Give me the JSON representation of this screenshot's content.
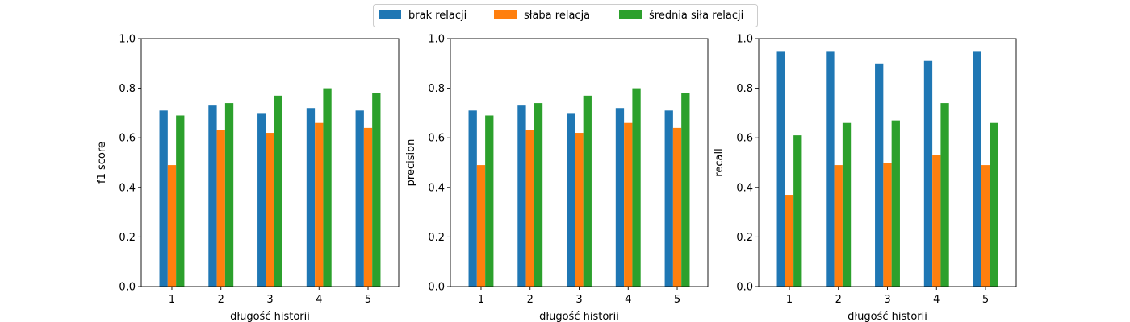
{
  "legend": {
    "placement": "top-center",
    "entries": [
      {
        "label": "brak relacji",
        "color": "#1f77b4"
      },
      {
        "label": "słaba relacja",
        "color": "#ff7f0e"
      },
      {
        "label": "średnia siła relacji",
        "color": "#2ca02c"
      }
    ]
  },
  "chart_data": [
    {
      "type": "bar",
      "title": "",
      "xlabel": "długość historii",
      "ylabel": "f1 score",
      "ylim": [
        0,
        1.0
      ],
      "yticks": [
        "0.0",
        "0.2",
        "0.4",
        "0.6",
        "0.8",
        "1.0"
      ],
      "categories": [
        "1",
        "2",
        "3",
        "4",
        "5"
      ],
      "grid": false,
      "series": [
        {
          "name": "brak relacji",
          "color": "#1f77b4",
          "values": [
            0.71,
            0.73,
            0.7,
            0.72,
            0.71
          ]
        },
        {
          "name": "słaba relacja",
          "color": "#ff7f0e",
          "values": [
            0.49,
            0.63,
            0.62,
            0.66,
            0.64
          ]
        },
        {
          "name": "średnia siła relacji",
          "color": "#2ca02c",
          "values": [
            0.69,
            0.74,
            0.77,
            0.8,
            0.78
          ]
        }
      ]
    },
    {
      "type": "bar",
      "title": "",
      "xlabel": "długość historii",
      "ylabel": "precision",
      "ylim": [
        0,
        1.0
      ],
      "yticks": [
        "0.0",
        "0.2",
        "0.4",
        "0.6",
        "0.8",
        "1.0"
      ],
      "categories": [
        "1",
        "2",
        "3",
        "4",
        "5"
      ],
      "grid": false,
      "series": [
        {
          "name": "brak relacji",
          "color": "#1f77b4",
          "values": [
            0.71,
            0.73,
            0.7,
            0.72,
            0.71
          ]
        },
        {
          "name": "słaba relacja",
          "color": "#ff7f0e",
          "values": [
            0.49,
            0.63,
            0.62,
            0.66,
            0.64
          ]
        },
        {
          "name": "średnia siła relacji",
          "color": "#2ca02c",
          "values": [
            0.69,
            0.74,
            0.77,
            0.8,
            0.78
          ]
        }
      ]
    },
    {
      "type": "bar",
      "title": "",
      "xlabel": "długość historii",
      "ylabel": "recall",
      "ylim": [
        0,
        1.0
      ],
      "yticks": [
        "0.0",
        "0.2",
        "0.4",
        "0.6",
        "0.8",
        "1.0"
      ],
      "categories": [
        "1",
        "2",
        "3",
        "4",
        "5"
      ],
      "grid": false,
      "series": [
        {
          "name": "brak relacji",
          "color": "#1f77b4",
          "values": [
            0.95,
            0.95,
            0.9,
            0.91,
            0.95
          ]
        },
        {
          "name": "słaba relacja",
          "color": "#ff7f0e",
          "values": [
            0.37,
            0.49,
            0.5,
            0.53,
            0.49
          ]
        },
        {
          "name": "średnia siła relacji",
          "color": "#2ca02c",
          "values": [
            0.61,
            0.66,
            0.67,
            0.74,
            0.66
          ]
        }
      ]
    }
  ]
}
